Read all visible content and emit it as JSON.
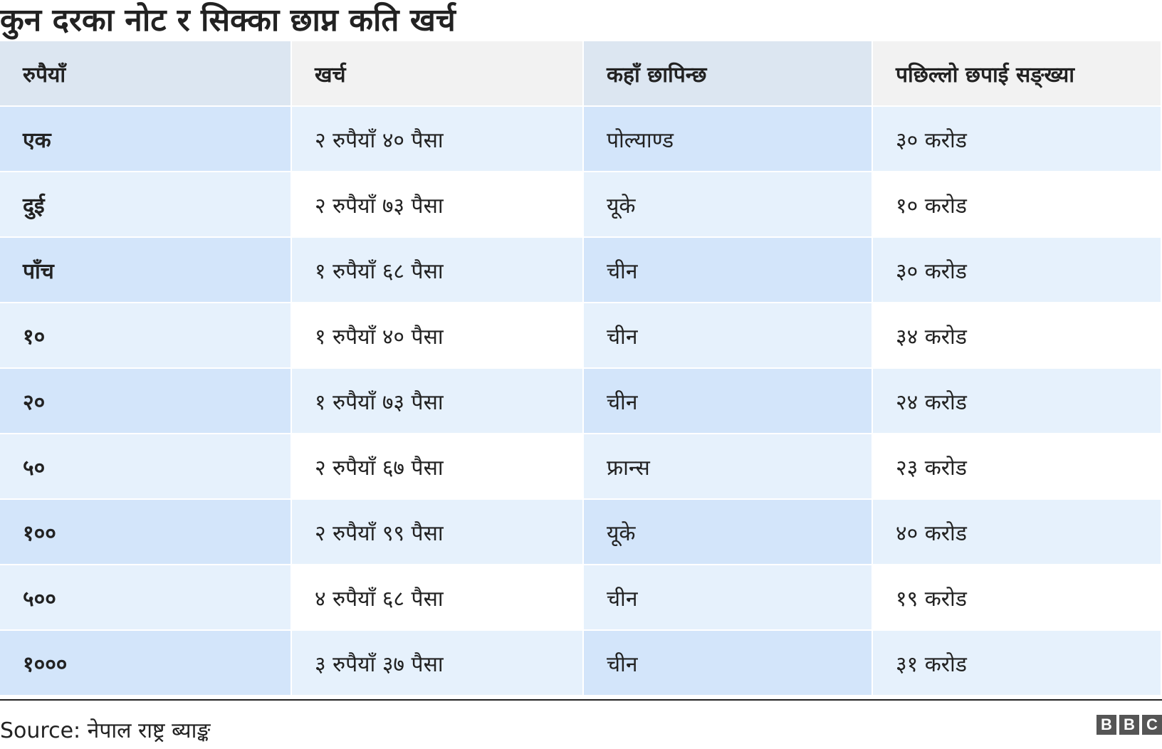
{
  "title": "कुन दरका नोट र सिक्का छाप्न कति खर्च",
  "table": {
    "headers": [
      "रुपैयाँ",
      "खर्च",
      "कहाँ छापिन्छ",
      "पछिल्लो छपाई सङ्ख्या"
    ],
    "rows": [
      [
        "एक",
        "२ रुपैयाँ ४० पैसा",
        "पोल्याण्ड",
        "३० करोड"
      ],
      [
        "दुई",
        "२ रुपैयाँ ७३ पैसा",
        "यूके",
        "१० करोड"
      ],
      [
        "पाँच",
        "१ रुपैयाँ ६८ पैसा",
        "चीन",
        "३० करोड"
      ],
      [
        "१०",
        "१ रुपैयाँ ४० पैसा",
        "चीन",
        "३४ करोड"
      ],
      [
        "२०",
        "१ रुपैयाँ ७३ पैसा",
        "चीन",
        "२४ करोड"
      ],
      [
        "५०",
        "२ रुपैयाँ ६७ पैसा",
        "फ्रान्स",
        "२३ करोड"
      ],
      [
        "१००",
        "२ रुपैयाँ ९९ पैसा",
        "यूके",
        "४० करोड"
      ],
      [
        "५००",
        "४ रुपैयाँ ६८ पैसा",
        "चीन",
        "१९ करोड"
      ],
      [
        "१०००",
        "३ रुपैयाँ ३७ पैसा",
        "चीन",
        "३१ करोड"
      ]
    ]
  },
  "footer": {
    "source": "Source: नेपाल राष्ट्र ब्याङ्क",
    "logo": [
      "B",
      "B",
      "C"
    ]
  }
}
